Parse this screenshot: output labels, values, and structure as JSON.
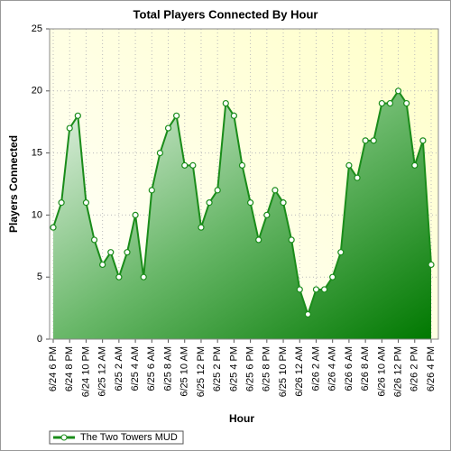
{
  "chart_data": {
    "type": "area",
    "title": "Total Players Connected By Hour",
    "x_label": "Hour",
    "y_label": "Players Connected",
    "categories": [
      "6/24 6 PM",
      null,
      "6/24 8 PM",
      null,
      "6/24 10 PM",
      null,
      "6/25 12 AM",
      null,
      "6/25 2 AM",
      null,
      "6/25 4 AM",
      null,
      "6/25 6 AM",
      null,
      "6/25 8 AM",
      null,
      "6/25 10 AM",
      null,
      "6/25 12 PM",
      null,
      "6/25 2 PM",
      null,
      "6/25 4 PM",
      null,
      "6/25 6 PM",
      null,
      "6/25 8 PM",
      null,
      "6/25 10 PM",
      null,
      "6/26 12 AM",
      null,
      "6/26 2 AM",
      null,
      "6/26 4 AM",
      null,
      "6/26 6 AM",
      null,
      "6/26 8 AM",
      null,
      "6/26 10 AM",
      null,
      "6/26 12 PM",
      null,
      "6/26 2 PM",
      null,
      "6/26 4 PM"
    ],
    "series": [
      {
        "name": "The Two Towers MUD",
        "color": "#1a8c1a",
        "values": [
          9,
          11,
          17,
          18,
          11,
          8,
          6,
          7,
          5,
          7,
          10,
          5,
          12,
          15,
          17,
          18,
          14,
          14,
          9,
          11,
          12,
          19,
          18,
          14,
          11,
          8,
          10,
          12,
          11,
          8,
          4,
          2,
          4,
          4,
          5,
          7,
          14,
          13,
          16,
          16,
          19,
          19,
          20,
          19,
          14,
          16,
          6
        ]
      }
    ],
    "ylim": [
      0,
      25
    ],
    "yticks": [
      0,
      5,
      10,
      15,
      20,
      25
    ],
    "grid": true,
    "legend": "bottom-left"
  }
}
